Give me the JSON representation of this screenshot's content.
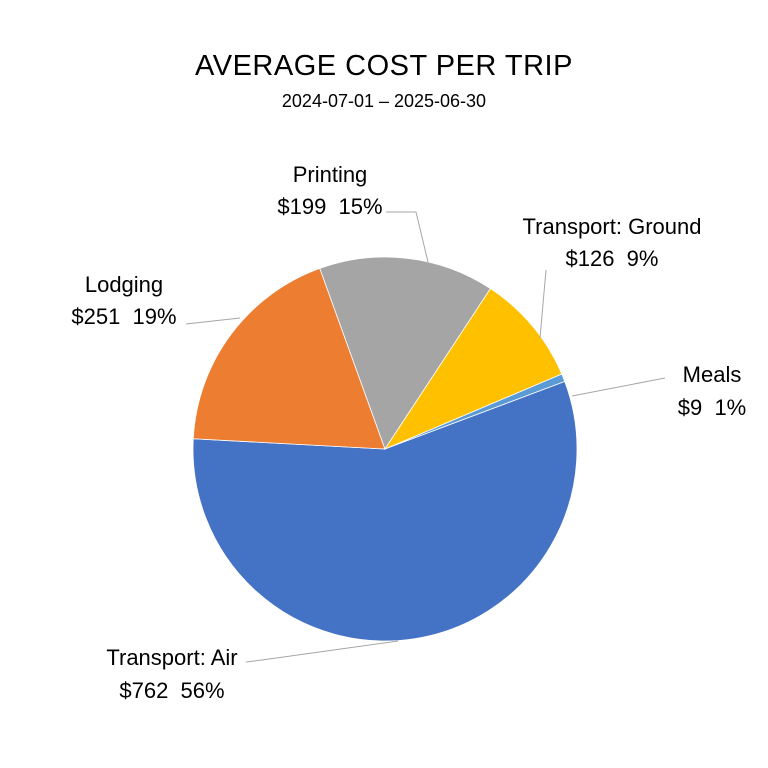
{
  "chart_data": {
    "type": "pie",
    "title": "AVERAGE COST PER TRIP",
    "subtitle": "2024-07-01 – 2025-06-30",
    "slices": [
      {
        "name": "Meals",
        "amount": "$9",
        "percent": "1%",
        "value": 9,
        "color": "#5b9bd5"
      },
      {
        "name": "Transport: Air",
        "amount": "$762",
        "percent": "56%",
        "value": 762,
        "color": "#4472c4"
      },
      {
        "name": "Lodging",
        "amount": "$251",
        "percent": "19%",
        "value": 251,
        "color": "#ed7d31"
      },
      {
        "name": "Printing",
        "amount": "$199",
        "percent": "15%",
        "value": 199,
        "color": "#a5a5a5"
      },
      {
        "name": "Transport: Ground",
        "amount": "$126",
        "percent": "9%",
        "value": 126,
        "color": "#ffc000"
      }
    ]
  }
}
